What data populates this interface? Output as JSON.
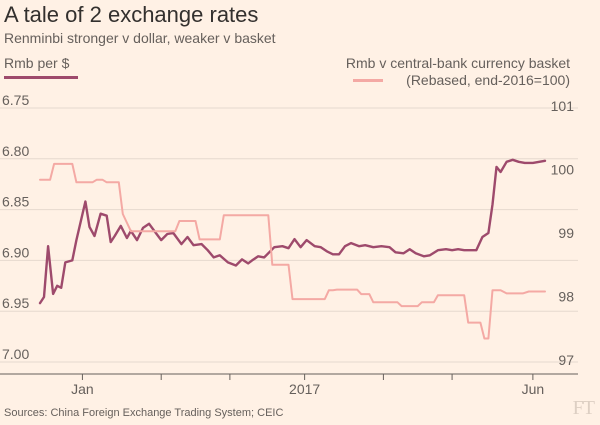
{
  "header": {
    "title": "A tale of 2 exchange rates",
    "subtitle": "Renminbi stronger v dollar, weaker v basket"
  },
  "legend": {
    "left_label": "Rmb per $",
    "right_label_line1": "Rmb v central-bank currency basket",
    "right_label_line2": "(Rebased, end-2016=100)"
  },
  "footer": {
    "source": "Sources: China Foreign Exchange Trading System; CEIC",
    "logo": "FT"
  },
  "colors": {
    "background": "#fff1e5",
    "usd_series": "#9e4a6c",
    "basket_series": "#f4a9a4",
    "grid": "#e6d9ce"
  },
  "chart_data": {
    "type": "line",
    "x_tick_labels": [
      {
        "label": "Jan",
        "day": 42
      },
      {
        "label": "2017",
        "day": 262
      },
      {
        "label": "Jun",
        "day": 488
      }
    ],
    "left_axis": {
      "label": "Rmb per $",
      "inverted": true,
      "ylim": [
        6.75,
        7.0
      ],
      "ticks": [
        "6.75",
        "6.80",
        "6.85",
        "6.90",
        "6.95",
        "7.00"
      ],
      "tick_values": [
        6.75,
        6.8,
        6.85,
        6.9,
        6.95,
        7.0
      ]
    },
    "right_axis": {
      "label": "Rmb v central-bank currency basket (Rebased, end-2016=100)",
      "ylim": [
        97,
        101
      ],
      "ticks": [
        "101",
        "100",
        "99",
        "98",
        "97"
      ],
      "tick_values": [
        101,
        100,
        99,
        98,
        97
      ]
    },
    "grid": true,
    "series": [
      {
        "name": "Rmb per $",
        "axis": "left",
        "color": "#9e4a6c",
        "points": [
          [
            0,
            6.942
          ],
          [
            4,
            6.936
          ],
          [
            8,
            6.886
          ],
          [
            13,
            6.933
          ],
          [
            17,
            6.925
          ],
          [
            21,
            6.927
          ],
          [
            25,
            6.902
          ],
          [
            32,
            6.9
          ],
          [
            36,
            6.88
          ],
          [
            45,
            6.842
          ],
          [
            49,
            6.867
          ],
          [
            54,
            6.876
          ],
          [
            60,
            6.854
          ],
          [
            66,
            6.856
          ],
          [
            70,
            6.882
          ],
          [
            74,
            6.876
          ],
          [
            80,
            6.866
          ],
          [
            86,
            6.878
          ],
          [
            90,
            6.871
          ],
          [
            96,
            6.88
          ],
          [
            102,
            6.868
          ],
          [
            108,
            6.864
          ],
          [
            114,
            6.872
          ],
          [
            120,
            6.88
          ],
          [
            126,
            6.874
          ],
          [
            132,
            6.873
          ],
          [
            140,
            6.884
          ],
          [
            146,
            6.877
          ],
          [
            152,
            6.885
          ],
          [
            160,
            6.884
          ],
          [
            166,
            6.89
          ],
          [
            172,
            6.897
          ],
          [
            178,
            6.895
          ],
          [
            186,
            6.902
          ],
          [
            194,
            6.905
          ],
          [
            200,
            6.899
          ],
          [
            206,
            6.903
          ],
          [
            210,
            6.9
          ],
          [
            216,
            6.896
          ],
          [
            222,
            6.897
          ],
          [
            232,
            6.887
          ],
          [
            240,
            6.886
          ],
          [
            246,
            6.888
          ],
          [
            252,
            6.879
          ],
          [
            258,
            6.887
          ],
          [
            264,
            6.88
          ],
          [
            272,
            6.886
          ],
          [
            278,
            6.887
          ],
          [
            284,
            6.891
          ],
          [
            290,
            6.894
          ],
          [
            296,
            6.894
          ],
          [
            302,
            6.886
          ],
          [
            308,
            6.883
          ],
          [
            316,
            6.886
          ],
          [
            322,
            6.885
          ],
          [
            330,
            6.887
          ],
          [
            338,
            6.886
          ],
          [
            346,
            6.887
          ],
          [
            352,
            6.892
          ],
          [
            360,
            6.893
          ],
          [
            366,
            6.889
          ],
          [
            372,
            6.893
          ],
          [
            380,
            6.896
          ],
          [
            386,
            6.895
          ],
          [
            394,
            6.89
          ],
          [
            402,
            6.889
          ],
          [
            408,
            6.89
          ],
          [
            414,
            6.889
          ],
          [
            420,
            6.89
          ],
          [
            432,
            6.89
          ],
          [
            438,
            6.877
          ],
          [
            444,
            6.873
          ],
          [
            448,
            6.845
          ],
          [
            452,
            6.808
          ],
          [
            456,
            6.813
          ],
          [
            462,
            6.803
          ],
          [
            468,
            6.801
          ],
          [
            474,
            6.803
          ],
          [
            480,
            6.804
          ],
          [
            488,
            6.804
          ],
          [
            500,
            6.802
          ]
        ]
      },
      {
        "name": "Rmb v central-bank currency basket",
        "axis": "right",
        "color": "#f4a9a4",
        "points": [
          [
            0,
            99.87
          ],
          [
            10,
            99.87
          ],
          [
            14,
            100.12
          ],
          [
            32,
            100.12
          ],
          [
            36,
            99.83
          ],
          [
            52,
            99.83
          ],
          [
            56,
            99.87
          ],
          [
            62,
            99.87
          ],
          [
            66,
            99.83
          ],
          [
            78,
            99.83
          ],
          [
            82,
            99.33
          ],
          [
            90,
            99.06
          ],
          [
            134,
            99.06
          ],
          [
            138,
            99.22
          ],
          [
            154,
            99.22
          ],
          [
            158,
            98.93
          ],
          [
            178,
            98.93
          ],
          [
            182,
            99.31
          ],
          [
            226,
            99.31
          ],
          [
            230,
            98.53
          ],
          [
            246,
            98.53
          ],
          [
            250,
            97.99
          ],
          [
            282,
            97.99
          ],
          [
            286,
            98.13
          ],
          [
            290,
            98.13
          ],
          [
            294,
            98.14
          ],
          [
            314,
            98.14
          ],
          [
            318,
            98.07
          ],
          [
            326,
            98.07
          ],
          [
            330,
            97.94
          ],
          [
            354,
            97.94
          ],
          [
            358,
            97.88
          ],
          [
            374,
            97.88
          ],
          [
            378,
            97.94
          ],
          [
            390,
            97.94
          ],
          [
            394,
            98.05
          ],
          [
            420,
            98.05
          ],
          [
            424,
            97.62
          ],
          [
            436,
            97.62
          ],
          [
            440,
            97.37
          ],
          [
            444,
            97.37
          ],
          [
            448,
            98.13
          ],
          [
            456,
            98.13
          ],
          [
            462,
            98.08
          ],
          [
            478,
            98.08
          ],
          [
            484,
            98.11
          ],
          [
            500,
            98.11
          ]
        ]
      }
    ]
  }
}
